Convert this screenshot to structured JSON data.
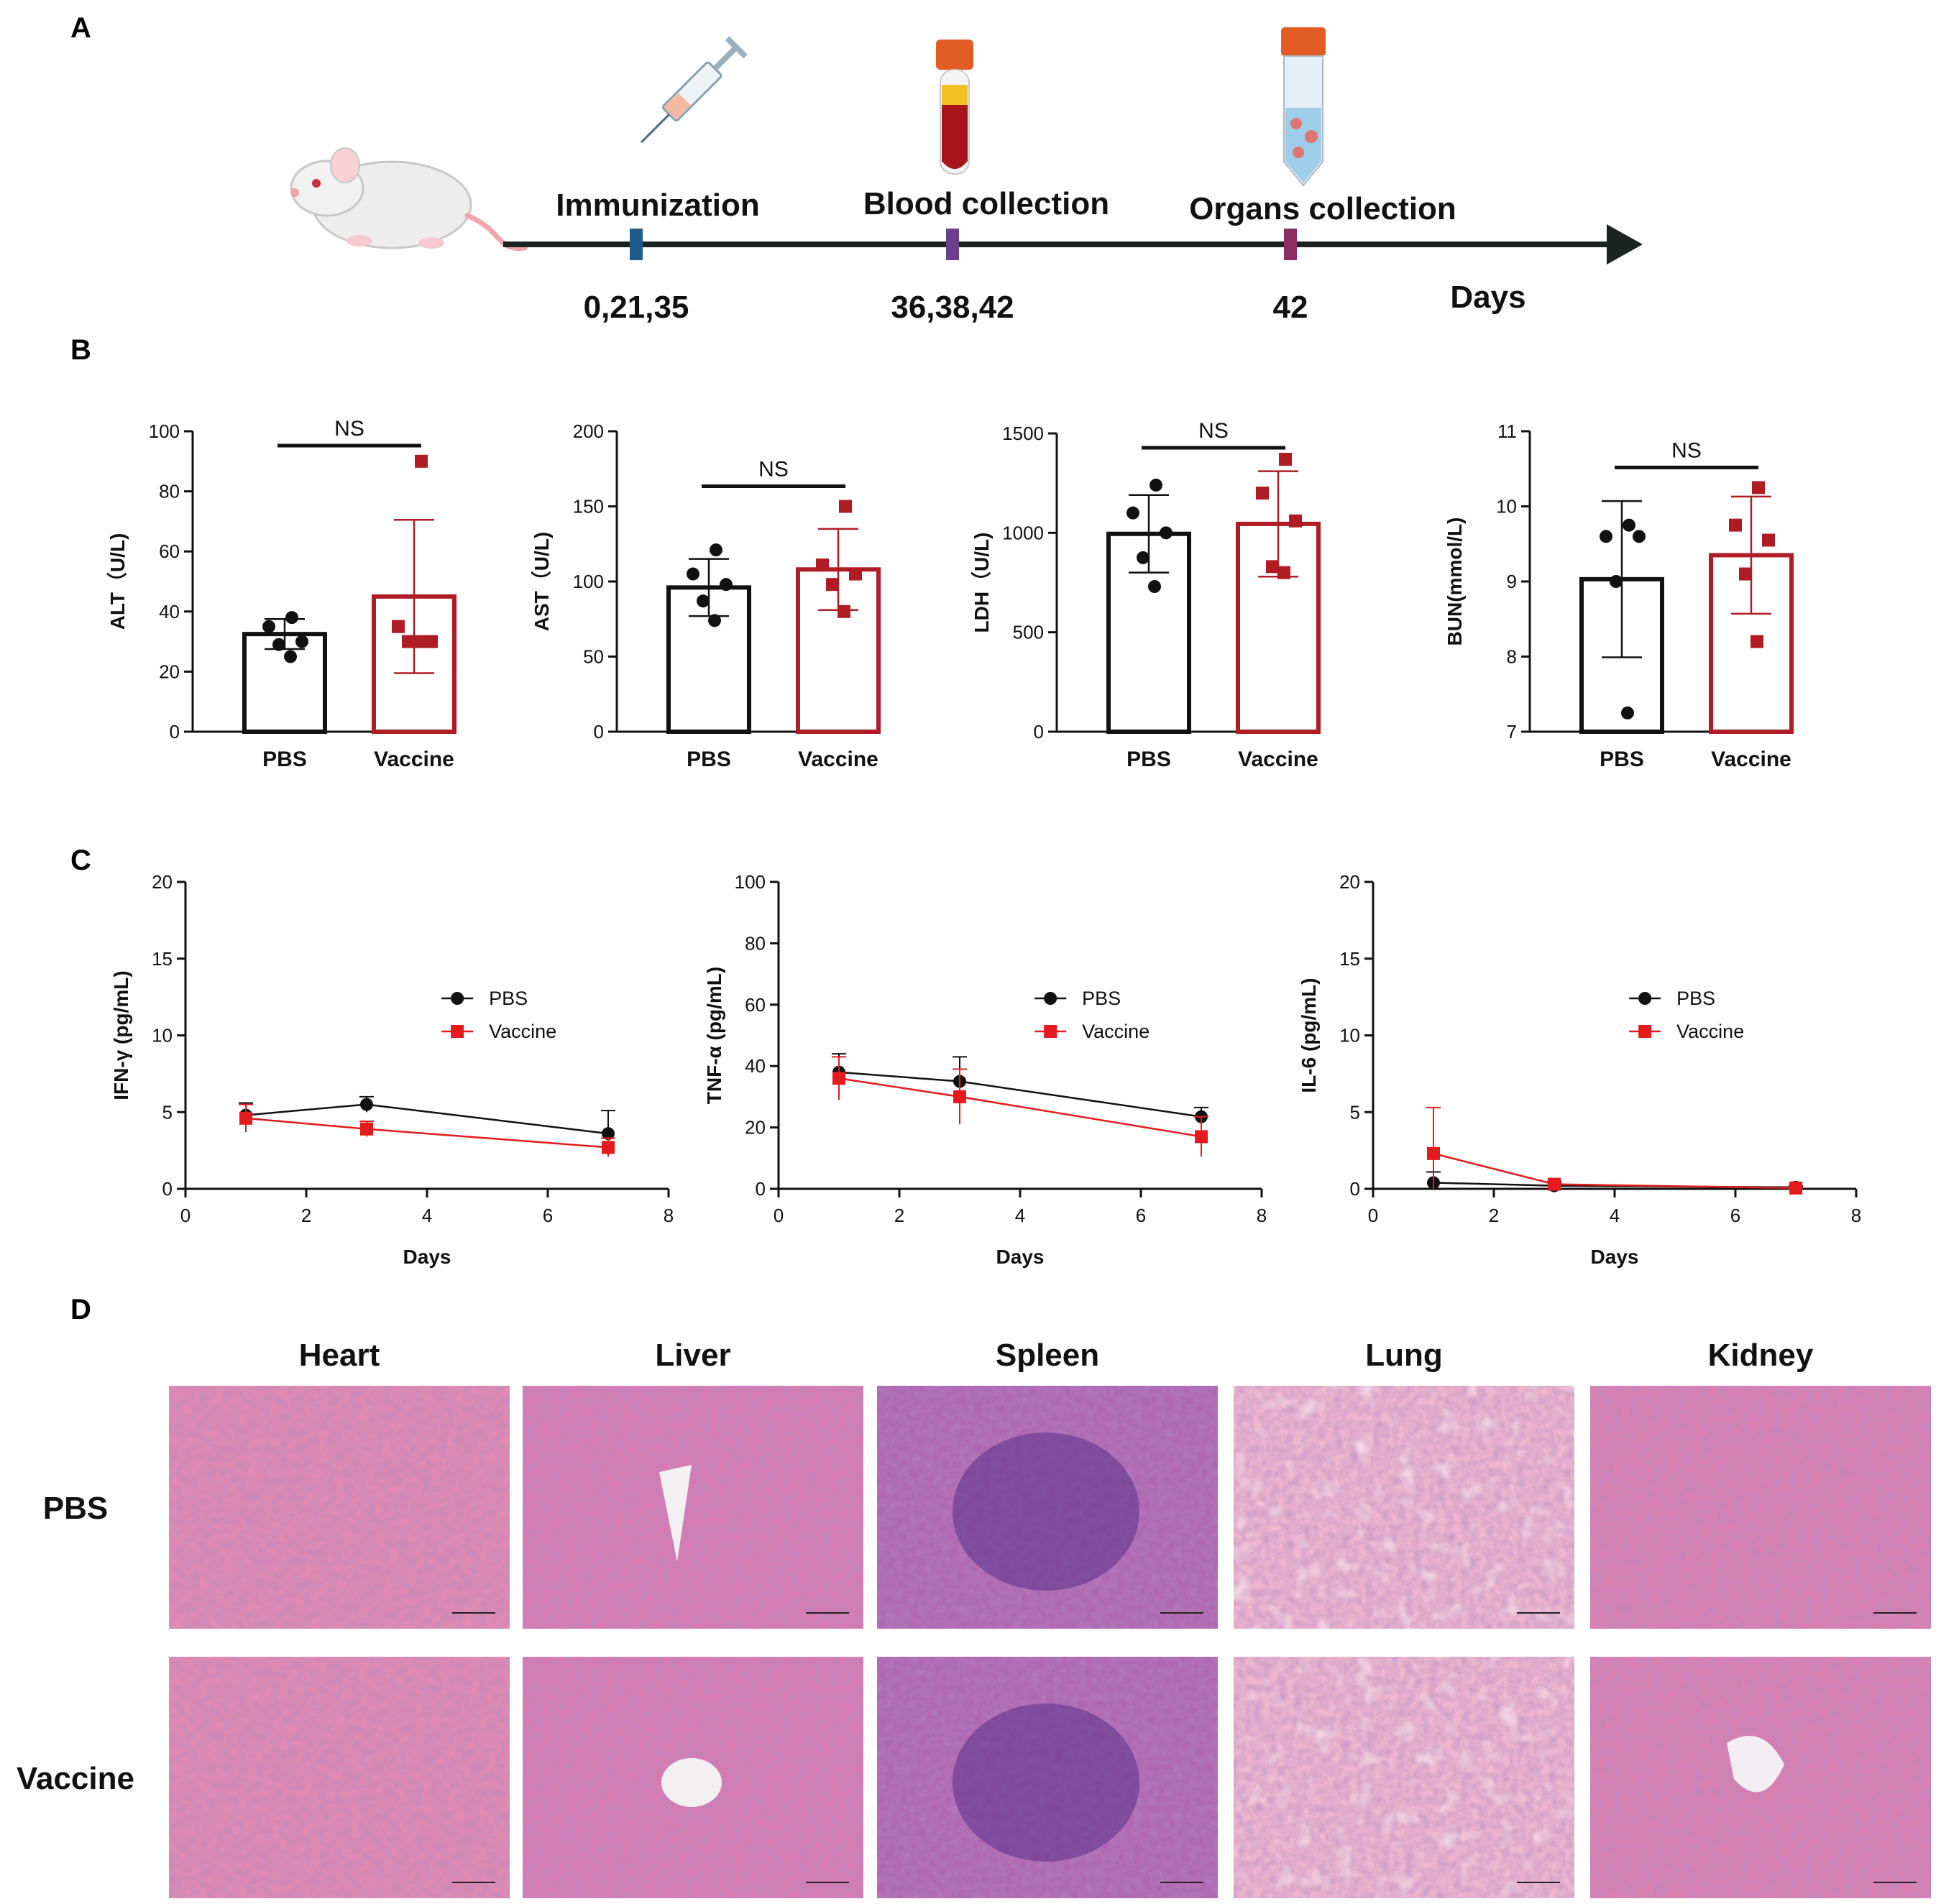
{
  "panel_labels": [
    "A",
    "B",
    "C",
    "D"
  ],
  "timeline": {
    "stages": [
      {
        "label": "Immunization",
        "days": "0,21,35",
        "color": "#1f5c8c",
        "icon": "syringe-icon"
      },
      {
        "label": "Blood collection",
        "days": "36,38,42",
        "color": "#6b3f8c",
        "icon": "blood-tube-icon"
      },
      {
        "label": "Organs collection",
        "days": "42",
        "color": "#8c2d66",
        "icon": "organ-tube-icon"
      }
    ],
    "axis_label": "Days",
    "subject_icon": "mouse-icon"
  },
  "colors": {
    "pbs": "#111111",
    "vaccine": "#b01c24",
    "vaccine_line": "#e41a1c"
  },
  "chart_data": [
    {
      "type": "bar",
      "panel": "B",
      "categories": [
        "PBS",
        "Vaccine"
      ],
      "ylabel": "ALT（U/L)",
      "ylim": [
        0,
        100
      ],
      "yticks": [
        0,
        20,
        40,
        60,
        80,
        100
      ],
      "means": [
        32.5,
        45
      ],
      "sd": [
        5,
        25.5
      ],
      "points": [
        [
          38,
          35,
          30,
          29,
          25
        ],
        [
          90,
          35,
          30,
          30,
          30
        ]
      ],
      "significance": "NS"
    },
    {
      "type": "bar",
      "panel": "B",
      "categories": [
        "PBS",
        "Vaccine"
      ],
      "ylabel": "AST（U/L)",
      "ylim": [
        0,
        200
      ],
      "yticks": [
        0,
        50,
        100,
        150,
        200
      ],
      "means": [
        96,
        108
      ],
      "sd": [
        19,
        27
      ],
      "points": [
        [
          121,
          105,
          98,
          87,
          74
        ],
        [
          150,
          111,
          105,
          98,
          80
        ]
      ],
      "significance": "NS"
    },
    {
      "type": "bar",
      "panel": "B",
      "categories": [
        "PBS",
        "Vaccine"
      ],
      "ylabel": "LDH（U/L)",
      "ylim": [
        0,
        1500
      ],
      "yticks": [
        0,
        500,
        1000,
        1500
      ],
      "means": [
        995,
        1045
      ],
      "sd": [
        195,
        265
      ],
      "points": [
        [
          1240,
          1100,
          1000,
          875,
          730
        ],
        [
          1370,
          1200,
          1060,
          830,
          800
        ]
      ],
      "significance": "NS"
    },
    {
      "type": "bar",
      "panel": "B",
      "categories": [
        "PBS",
        "Vaccine"
      ],
      "ylabel": "BUN(mmol/L)",
      "ylim": [
        7,
        11
      ],
      "yticks": [
        7,
        8,
        9,
        10,
        11
      ],
      "means": [
        9.03,
        9.35
      ],
      "sd": [
        1.04,
        0.78
      ],
      "points": [
        [
          9.75,
          9.6,
          9.6,
          9.0,
          7.25
        ],
        [
          10.25,
          9.75,
          9.55,
          9.1,
          8.2
        ]
      ],
      "significance": "NS"
    },
    {
      "type": "line",
      "panel": "C",
      "xlabel": "Days",
      "ylabel": "IFN-γ (pg/mL)",
      "xlim": [
        0,
        8
      ],
      "xticks": [
        0,
        2,
        4,
        6,
        8
      ],
      "ylim": [
        0,
        20
      ],
      "yticks": [
        0,
        5,
        10,
        15,
        20
      ],
      "x": [
        1,
        3,
        7
      ],
      "series": [
        {
          "name": "PBS",
          "values": [
            4.8,
            5.5,
            3.6
          ],
          "err": [
            0.8,
            0.5,
            1.5
          ]
        },
        {
          "name": "Vaccine",
          "values": [
            4.6,
            3.9,
            2.7
          ],
          "err": [
            0.9,
            0.5,
            0.6
          ]
        }
      ],
      "legend": "right"
    },
    {
      "type": "line",
      "panel": "C",
      "xlabel": "Days",
      "ylabel": "TNF-α (pg/mL)",
      "xlim": [
        0,
        8
      ],
      "xticks": [
        0,
        2,
        4,
        6,
        8
      ],
      "ylim": [
        0,
        100
      ],
      "yticks": [
        0,
        20,
        40,
        60,
        80,
        100
      ],
      "x": [
        1,
        3,
        7
      ],
      "series": [
        {
          "name": "PBS",
          "values": [
            38,
            35,
            23.5
          ],
          "err": [
            6,
            8,
            3
          ]
        },
        {
          "name": "Vaccine",
          "values": [
            36,
            30,
            17
          ],
          "err": [
            7,
            9,
            6.5
          ]
        }
      ],
      "legend": "right"
    },
    {
      "type": "line",
      "panel": "C",
      "xlabel": "Days",
      "ylabel": "IL-6 (pg/mL)",
      "xlim": [
        0,
        8
      ],
      "xticks": [
        0,
        2,
        4,
        6,
        8
      ],
      "ylim": [
        0,
        20
      ],
      "yticks": [
        0,
        5,
        10,
        15,
        20
      ],
      "x": [
        1,
        3,
        7
      ],
      "series": [
        {
          "name": "PBS",
          "values": [
            0.4,
            0.2,
            0.1
          ],
          "err": [
            0.7,
            0.2,
            0.1
          ]
        },
        {
          "name": "Vaccine",
          "values": [
            2.3,
            0.3,
            0.05
          ],
          "err": [
            3.0,
            0.2,
            0.05
          ]
        }
      ],
      "legend": "right"
    }
  ],
  "histology": {
    "columns": [
      "Heart",
      "Liver",
      "Spleen",
      "Lung",
      "Kidney"
    ],
    "rows": [
      "PBS",
      "Vaccine"
    ]
  }
}
